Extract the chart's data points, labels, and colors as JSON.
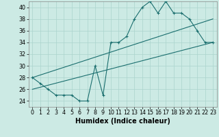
{
  "title": "",
  "xlabel": "Humidex (Indice chaleur)",
  "ylabel": "",
  "bg_color": "#cceae4",
  "grid_color": "#aad4cc",
  "line_color": "#1a6e6e",
  "xlim": [
    -0.5,
    23.5
  ],
  "ylim": [
    23,
    41
  ],
  "yticks": [
    24,
    26,
    28,
    30,
    32,
    34,
    36,
    38,
    40
  ],
  "xticks": [
    0,
    1,
    2,
    3,
    4,
    5,
    6,
    7,
    8,
    9,
    10,
    11,
    12,
    13,
    14,
    15,
    16,
    17,
    18,
    19,
    20,
    21,
    22,
    23
  ],
  "line1_x": [
    0,
    1,
    2,
    3,
    4,
    5,
    6,
    7,
    8,
    9,
    10,
    11,
    12,
    13,
    14,
    15,
    16,
    17,
    18,
    19,
    20,
    21,
    22,
    23
  ],
  "line1_y": [
    28,
    27,
    26,
    25,
    25,
    25,
    24,
    24,
    30,
    25,
    34,
    34,
    35,
    38,
    40,
    41,
    39,
    41,
    39,
    39,
    38,
    36,
    34,
    34
  ],
  "line2_x": [
    0,
    23
  ],
  "line2_y": [
    26,
    34
  ],
  "line3_x": [
    0,
    23
  ],
  "line3_y": [
    28,
    38
  ],
  "tick_fontsize": 5.8,
  "label_fontsize": 7.0
}
